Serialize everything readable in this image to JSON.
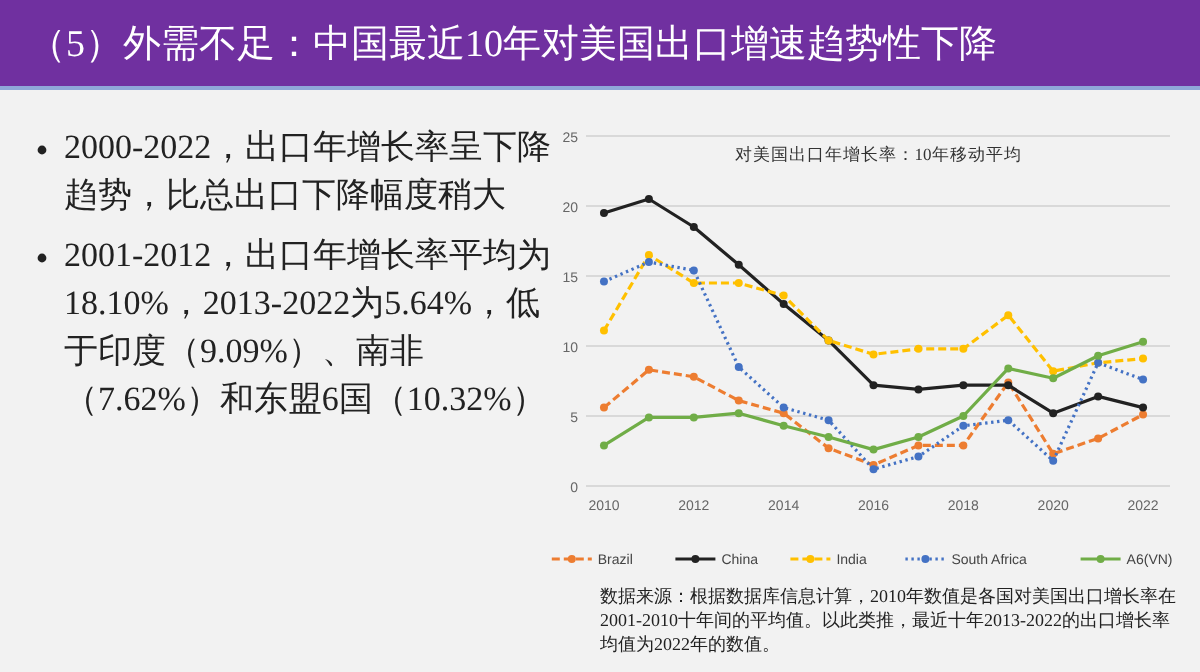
{
  "chart_data": {
    "type": "line",
    "title": "对美国出口年增长率：10年移动平均",
    "annotations": [
      "（5）外需不足：中国最近10年对美国出口增速趋势性下降",
      "2000-2022，出口年增长率呈下降趋势，比总出口下降幅度稍大",
      "2001-2012，出口年增长率平均为18.10%，2013-2022为5.64%，低于印度（9.09%）、南非（7.62%）和东盟6国（10.32%）",
      "数据来源：根据数据库信息计算，2010年数值是各国对美国出口增长率在2001-2010十年间的平均值。以此类推，最近十年2013-2022的出口增长率均值为2022年的数值。"
    ],
    "x": [
      2010,
      2011,
      2012,
      2013,
      2014,
      2015,
      2016,
      2017,
      2018,
      2019,
      2020,
      2021,
      2022
    ],
    "xlim": [
      2009.6,
      2022.6
    ],
    "xticks": [
      2010,
      2012,
      2014,
      2016,
      2018,
      2020,
      2022
    ],
    "ylim": [
      0,
      25
    ],
    "yticks": [
      0,
      5,
      10,
      15,
      20,
      25
    ],
    "grid": "y",
    "legend": "bottom",
    "marker": "circle",
    "series": [
      {
        "name": "Brazil",
        "color": "#ed7d31",
        "line_style": "dashed",
        "values": [
          5.6,
          8.3,
          7.8,
          6.1,
          5.2,
          2.7,
          1.5,
          2.9,
          2.9,
          7.4,
          2.3,
          3.4,
          5.1
        ]
      },
      {
        "name": "China",
        "color": "#222222",
        "line_style": "solid",
        "values": [
          19.5,
          20.5,
          18.5,
          15.8,
          13.0,
          10.4,
          7.2,
          6.9,
          7.2,
          7.2,
          5.2,
          6.4,
          5.6
        ]
      },
      {
        "name": "India",
        "color": "#ffc000",
        "line_style": "dashed",
        "values": [
          11.1,
          16.5,
          14.5,
          14.5,
          13.6,
          10.4,
          9.4,
          9.8,
          9.8,
          12.2,
          8.2,
          8.8,
          9.1
        ]
      },
      {
        "name": "South Africa",
        "color": "#4472c4",
        "line_style": "dotted",
        "values": [
          14.6,
          16.0,
          15.4,
          8.5,
          5.6,
          4.7,
          1.2,
          2.1,
          4.3,
          4.7,
          1.8,
          8.8,
          7.6
        ]
      },
      {
        "name": "A6(VN)",
        "color": "#70ad47",
        "line_style": "solid",
        "values": [
          2.9,
          4.9,
          4.9,
          5.2,
          4.3,
          3.5,
          2.6,
          3.5,
          5.0,
          8.4,
          7.7,
          9.3,
          10.3
        ]
      }
    ]
  }
}
